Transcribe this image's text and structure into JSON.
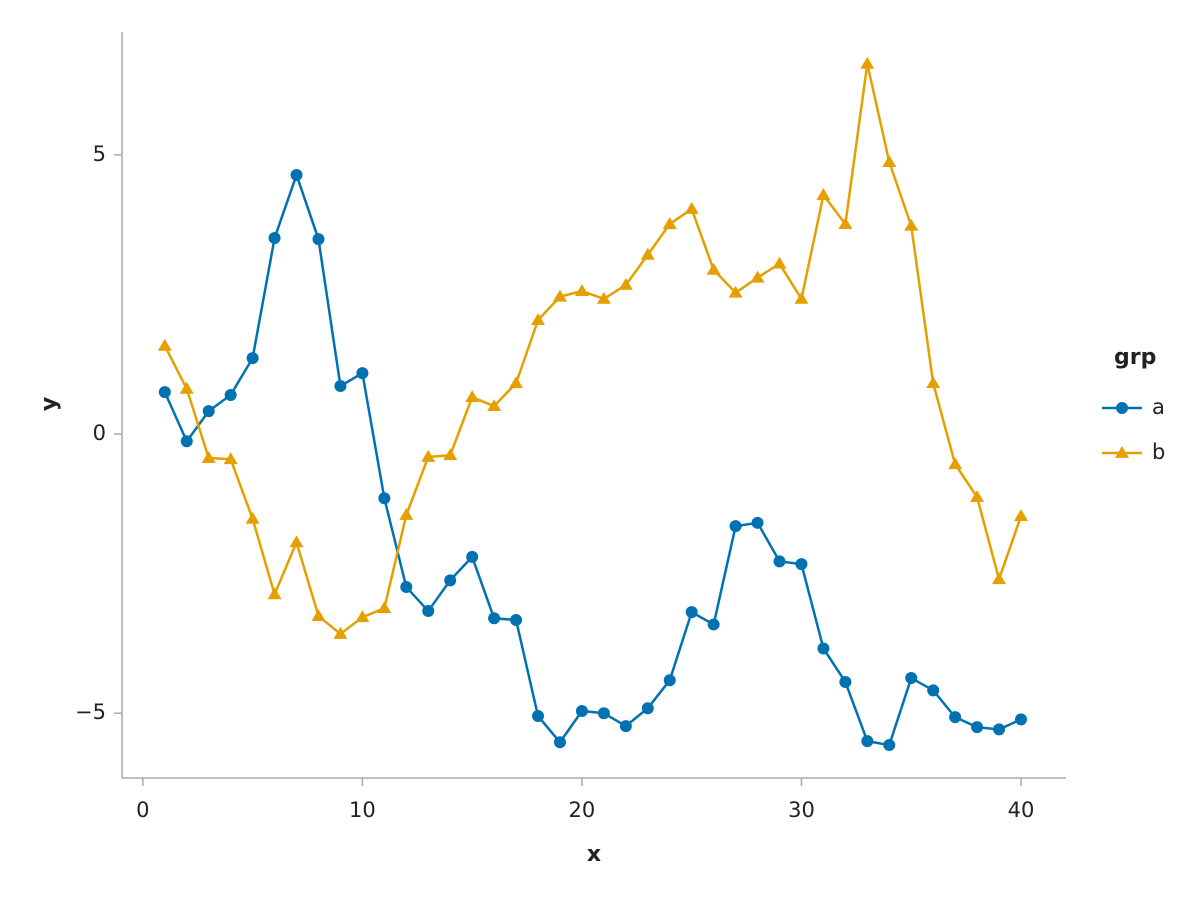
{
  "chart_data": {
    "type": "line",
    "x_label": "x",
    "y_label": "y",
    "legend_title": "grp",
    "legend_position": "right",
    "x": [
      1,
      2,
      3,
      4,
      5,
      6,
      7,
      8,
      9,
      10,
      11,
      12,
      13,
      14,
      15,
      16,
      17,
      18,
      19,
      20,
      21,
      22,
      23,
      24,
      25,
      26,
      27,
      28,
      29,
      30,
      31,
      32,
      33,
      34,
      35,
      36,
      37,
      38,
      39,
      40
    ],
    "series": [
      {
        "name": "a",
        "color": "#0072b2",
        "marker": "circle",
        "values": [
          0.75,
          -0.13,
          0.41,
          0.7,
          1.36,
          3.51,
          4.64,
          3.49,
          0.86,
          1.09,
          -1.15,
          -2.74,
          -3.17,
          -2.62,
          -2.2,
          -3.3,
          -3.33,
          -5.05,
          -5.52,
          -4.96,
          -5.0,
          -5.23,
          -4.91,
          -4.41,
          -3.19,
          -3.41,
          -1.65,
          -1.59,
          -2.28,
          -2.33,
          -3.84,
          -4.44,
          -5.5,
          -5.57,
          -4.37,
          -4.59,
          -5.07,
          -5.25,
          -5.29,
          -5.11
        ]
      },
      {
        "name": "b",
        "color": "#e69f00",
        "marker": "triangle",
        "values": [
          1.58,
          0.81,
          -0.43,
          -0.45,
          -1.52,
          -2.87,
          -1.94,
          -3.26,
          -3.58,
          -3.28,
          -3.12,
          -1.45,
          -0.41,
          -0.38,
          0.66,
          0.5,
          0.91,
          2.04,
          2.46,
          2.56,
          2.42,
          2.67,
          3.21,
          3.76,
          4.03,
          2.94,
          2.53,
          2.8,
          3.05,
          2.42,
          4.28,
          3.76,
          6.63,
          4.87,
          3.73,
          0.91,
          -0.54,
          -1.13,
          -2.6,
          -1.47
        ]
      }
    ],
    "xlim": [
      -0.95,
      42.05
    ],
    "xticks": [
      0,
      10,
      20,
      30,
      40
    ],
    "ylim": [
      -6.16,
      7.2
    ],
    "yticks": [
      {
        "value": -5,
        "label": "−5"
      },
      0,
      5
    ]
  }
}
